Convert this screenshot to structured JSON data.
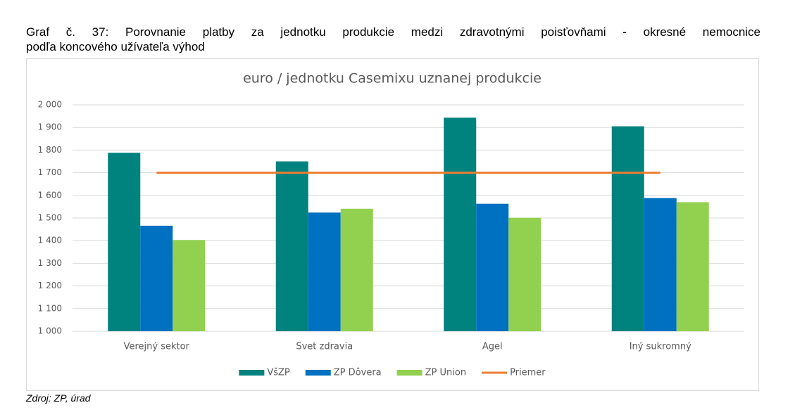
{
  "caption": [
    "Graf č. 37: Porovnanie platby za jednotku produkcie medzi zdravotnými poisťovňami - okresné nemocnice",
    "podľa koncového užívateľa výhod"
  ],
  "chart_data": {
    "type": "bar",
    "title": "euro / jednotku Casemixu uznanej produkcie",
    "categories": [
      "Verejný sektor",
      "Svet zdravia",
      "Agel",
      "Iný sukromný"
    ],
    "series": [
      {
        "name": "VšZP",
        "color": "#00827f",
        "values": [
          1788,
          1750,
          1943,
          1905
        ]
      },
      {
        "name": "ZP Dôvera",
        "color": "#0070c0",
        "values": [
          1466,
          1524,
          1563,
          1588
        ]
      },
      {
        "name": "ZP Union",
        "color": "#92d050",
        "values": [
          1403,
          1541,
          1501,
          1570
        ]
      },
      {
        "name": "Priemer",
        "color": "#ed7d31",
        "type": "line",
        "values": [
          1700,
          1700,
          1700,
          1700
        ]
      }
    ],
    "ylim": [
      1000,
      2000
    ],
    "yticks": [
      {
        "value": 1000,
        "label": "1 000"
      },
      {
        "value": 1100,
        "label": "1 100"
      },
      {
        "value": 1200,
        "label": "1 200"
      },
      {
        "value": 1300,
        "label": "1 300"
      },
      {
        "value": 1400,
        "label": "1 400"
      },
      {
        "value": 1500,
        "label": "1 500"
      },
      {
        "value": 1600,
        "label": "1 600"
      },
      {
        "value": 1700,
        "label": "1 700"
      },
      {
        "value": 1800,
        "label": "1 800"
      },
      {
        "value": 1900,
        "label": "1 900"
      },
      {
        "value": 2000,
        "label": "2 000"
      }
    ],
    "grid": true,
    "legend": "bottom"
  },
  "source": "Zdroj: ZP, úrad"
}
